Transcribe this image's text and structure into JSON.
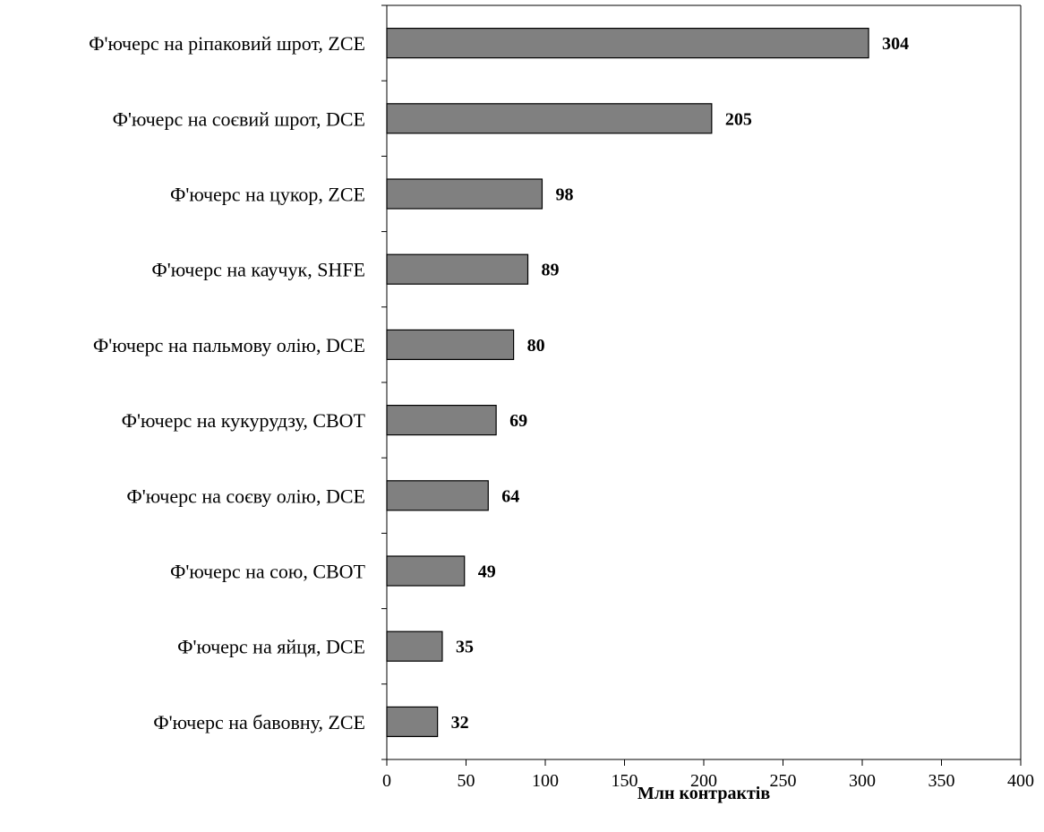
{
  "chart_data": {
    "type": "bar",
    "orientation": "horizontal",
    "categories": [
      "Ф'ючерс на ріпаковий шрот, ZCE",
      "Ф'ючерс на соєвий шрот, DCE",
      "Ф'ючерс на цукор, ZCE",
      "Ф'ючерс на каучук, SHFE",
      "Ф'ючерс на пальмову олію, DCE",
      "Ф'ючерс на кукурудзу, CBOT",
      "Ф'ючерс на соєву олію, DCE",
      "Ф'ючерс на сою, CBOT",
      "Ф'ючерс на яйця, DCE",
      "Ф'ючерс на бавовну, ZCE"
    ],
    "values": [
      304,
      205,
      98,
      89,
      80,
      69,
      64,
      49,
      35,
      32
    ],
    "value_labels": [
      "304",
      "205",
      "98",
      "89",
      "80",
      "69",
      "64",
      "49",
      "35",
      "32"
    ],
    "title": "",
    "xlabel": "Млн контрактів",
    "ylabel": "",
    "xlim": [
      0,
      400
    ],
    "xticks": [
      0,
      50,
      100,
      150,
      200,
      250,
      300,
      350,
      400
    ],
    "grid": false,
    "legend": "none",
    "bar_color": "#808080"
  }
}
